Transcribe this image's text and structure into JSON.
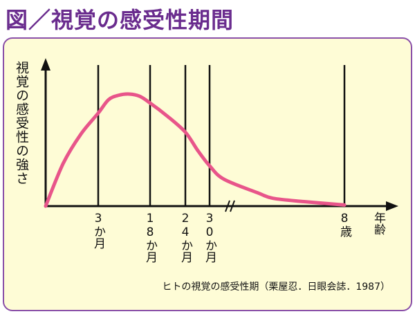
{
  "title": "図／視覚の感受性期間",
  "ylabel": "視覚の感受性の強さ",
  "xlabel": "年齢",
  "caption": "ヒトの視覚の感受性期（栗屋忍．日眼会誌．1987）",
  "colors": {
    "title": "#6a2c8e",
    "panel_bg": "#fefcd6",
    "panel_border": "#8a4fa8",
    "curve": "#e8558a",
    "axis": "#111111"
  },
  "chart_data": {
    "type": "line",
    "title": "",
    "ylabel": "視覚の感受性の強さ",
    "xlabel": "年齢",
    "x_axis_break": "after 30か月",
    "tick_labels": [
      "3か月",
      "18か月",
      "24か月",
      "30か月",
      "8歳"
    ],
    "ticks": [
      {
        "label": "3か月",
        "months": 3
      },
      {
        "label": "18か月",
        "months": 18
      },
      {
        "label": "24か月",
        "months": 24
      },
      {
        "label": "30か月",
        "months": 30
      },
      {
        "label": "8歳",
        "months": 96
      }
    ],
    "series": [
      {
        "name": "",
        "points": [
          {
            "x": 0,
            "y": 0.0
          },
          {
            "x": 1,
            "y": 0.38
          },
          {
            "x": 2,
            "y": 0.64
          },
          {
            "x": 3,
            "y": 0.83
          },
          {
            "x": 6,
            "y": 0.95
          },
          {
            "x": 9,
            "y": 0.99
          },
          {
            "x": 12,
            "y": 1.0
          },
          {
            "x": 15,
            "y": 0.98
          },
          {
            "x": 18,
            "y": 0.92
          },
          {
            "x": 21,
            "y": 0.8
          },
          {
            "x": 24,
            "y": 0.66
          },
          {
            "x": 27,
            "y": 0.5
          },
          {
            "x": 30,
            "y": 0.36
          },
          {
            "x": 33,
            "y": 0.24
          },
          {
            "x": 40,
            "y": 0.12
          },
          {
            "x": 50,
            "y": 0.07
          },
          {
            "x": 70,
            "y": 0.04
          },
          {
            "x": 96,
            "y": 0.01
          }
        ]
      }
    ]
  }
}
